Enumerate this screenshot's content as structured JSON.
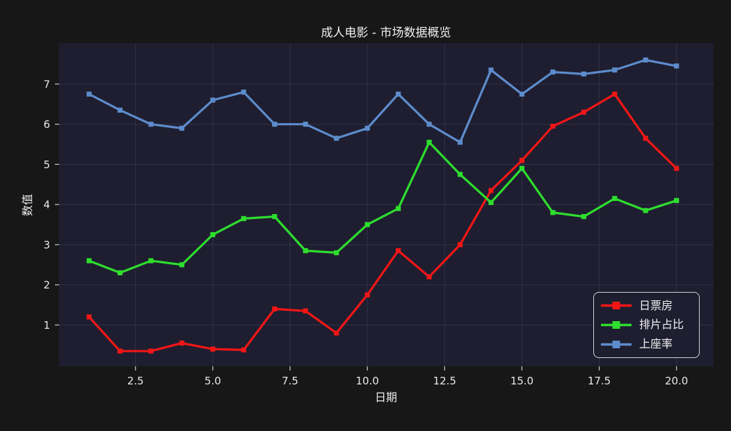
{
  "chart": {
    "title": "成人电影 - 市场数据概览",
    "xlabel": "日期",
    "ylabel": "数值"
  },
  "colors": {
    "figure_bg": "#171717",
    "plot_bg": "#1e1e30",
    "grid": "#31314a",
    "tick": "#d0d0d0",
    "text": "#e8e8e8",
    "red_series": "#f21616",
    "green_series": "#2ede2e",
    "blue_series": "#5d8ccc"
  },
  "chart_data": {
    "type": "line",
    "title": "成人电影 - 市场数据概览",
    "xlabel": "日期",
    "ylabel": "数值",
    "marker": "square",
    "grid": true,
    "legend_position": "lower right",
    "x": [
      1,
      2,
      3,
      4,
      5,
      6,
      7,
      8,
      9,
      10,
      11,
      12,
      13,
      14,
      15,
      16,
      17,
      18,
      19,
      20
    ],
    "series": [
      {
        "name": "日票房",
        "slug": "daily-box-office",
        "color": "#f21616",
        "values": [
          1.2,
          0.35,
          0.35,
          0.55,
          0.4,
          0.38,
          1.4,
          1.35,
          0.8,
          1.75,
          2.85,
          2.2,
          3.0,
          4.35,
          5.1,
          5.95,
          6.3,
          6.75,
          5.65,
          4.9
        ]
      },
      {
        "name": "排片占比",
        "slug": "screening-share",
        "color": "#2ede2e",
        "values": [
          2.6,
          2.3,
          2.6,
          2.5,
          3.25,
          3.65,
          3.7,
          2.85,
          2.8,
          3.5,
          3.9,
          5.55,
          4.75,
          4.05,
          4.9,
          3.8,
          3.7,
          4.15,
          3.85,
          4.1
        ]
      },
      {
        "name": "上座率",
        "slug": "attendance-rate",
        "color": "#5d8ccc",
        "values": [
          6.75,
          6.35,
          6.0,
          5.9,
          6.6,
          6.8,
          6.0,
          6.0,
          5.65,
          5.9,
          6.75,
          6.0,
          5.55,
          7.35,
          6.75,
          7.3,
          7.25,
          7.35,
          7.6,
          7.45
        ]
      }
    ],
    "xticks": [
      2.5,
      5.0,
      7.5,
      10.0,
      12.5,
      15.0,
      17.5,
      20.0
    ],
    "xtick_labels": [
      "2.5",
      "5.0",
      "7.5",
      "10.0",
      "12.5",
      "15.0",
      "17.5",
      "20.0"
    ],
    "yticks": [
      1,
      2,
      3,
      4,
      5,
      6,
      7
    ],
    "ytick_labels": [
      "1",
      "2",
      "3",
      "4",
      "5",
      "6",
      "7"
    ],
    "xlim": [
      0.03,
      21.2
    ],
    "ylim": [
      -0.03,
      8.02
    ]
  }
}
